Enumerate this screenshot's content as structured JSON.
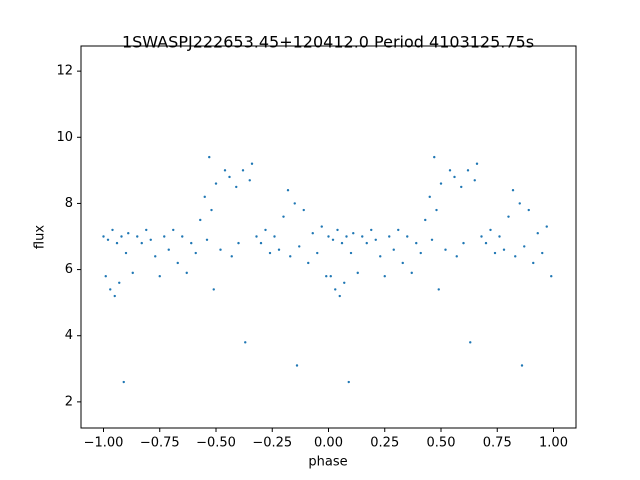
{
  "chart_data": {
    "type": "scatter",
    "title": "1SWASPJ222653.45+120412.0 Period 4103125.75s",
    "x_label": "phase",
    "y_label": "flux",
    "color": "#1f77b4",
    "x": [
      -1.0,
      -0.99,
      -0.98,
      -0.97,
      -0.96,
      -0.95,
      -0.94,
      -0.93,
      -0.92,
      -0.91,
      -0.9,
      -0.89,
      -0.87,
      -0.85,
      -0.83,
      -0.81,
      -0.79,
      -0.77,
      -0.75,
      -0.73,
      -0.71,
      -0.69,
      -0.67,
      -0.65,
      -0.63,
      -0.61,
      -0.59,
      -0.57,
      -0.55,
      -0.54,
      -0.53,
      -0.52,
      -0.51,
      -0.5,
      -0.48,
      -0.46,
      -0.44,
      -0.43,
      -0.41,
      -0.4,
      -0.38,
      -0.37,
      -0.35,
      -0.34,
      -0.32,
      -0.3,
      -0.28,
      -0.26,
      -0.24,
      -0.22,
      -0.2,
      -0.18,
      -0.17,
      -0.15,
      -0.14,
      -0.13,
      -0.11,
      -0.09,
      -0.07,
      -0.05,
      -0.03,
      -0.01,
      0.0,
      0.01,
      0.02,
      0.03,
      0.04,
      0.05,
      0.06,
      0.07,
      0.08,
      0.09,
      0.1,
      0.11,
      0.13,
      0.15,
      0.17,
      0.19,
      0.21,
      0.23,
      0.25,
      0.27,
      0.29,
      0.31,
      0.33,
      0.35,
      0.37,
      0.39,
      0.41,
      0.43,
      0.45,
      0.46,
      0.47,
      0.48,
      0.49,
      0.5,
      0.52,
      0.54,
      0.56,
      0.57,
      0.59,
      0.6,
      0.62,
      0.63,
      0.65,
      0.66,
      0.68,
      0.7,
      0.72,
      0.74,
      0.76,
      0.78,
      0.8,
      0.82,
      0.83,
      0.85,
      0.86,
      0.87,
      0.89,
      0.91,
      0.93,
      0.95,
      0.97,
      0.99
    ],
    "values": [
      7.0,
      5.8,
      6.9,
      5.4,
      7.2,
      5.2,
      6.8,
      5.6,
      7.0,
      2.6,
      6.5,
      7.1,
      5.9,
      7.0,
      6.8,
      7.2,
      6.9,
      6.4,
      5.8,
      7.0,
      6.6,
      7.2,
      6.2,
      7.0,
      5.9,
      6.8,
      6.5,
      7.5,
      8.2,
      6.9,
      9.4,
      7.8,
      5.4,
      8.6,
      6.6,
      9.0,
      8.8,
      6.4,
      8.5,
      6.8,
      9.0,
      3.8,
      8.7,
      9.2,
      7.0,
      6.8,
      7.2,
      6.5,
      7.0,
      6.6,
      7.6,
      8.4,
      6.4,
      8.0,
      3.1,
      6.7,
      7.8,
      6.2,
      7.1,
      6.5,
      7.3,
      5.8,
      7.0,
      5.8,
      6.9,
      5.4,
      7.2,
      5.2,
      6.8,
      5.6,
      7.0,
      2.6,
      6.5,
      7.1,
      5.9,
      7.0,
      6.8,
      7.2,
      6.9,
      6.4,
      5.8,
      7.0,
      6.6,
      7.2,
      6.2,
      7.0,
      5.9,
      6.8,
      6.5,
      7.5,
      8.2,
      6.9,
      9.4,
      7.8,
      5.4,
      8.6,
      6.6,
      9.0,
      8.8,
      6.4,
      8.5,
      6.8,
      9.0,
      3.8,
      8.7,
      9.2,
      7.0,
      6.8,
      7.2,
      6.5,
      7.0,
      6.6,
      7.6,
      8.4,
      6.4,
      8.0,
      3.1,
      6.7,
      7.8,
      6.2,
      7.1,
      6.5,
      7.3,
      5.8
    ],
    "xlim": [
      -1.1,
      1.1
    ],
    "ylim": [
      1.21,
      12.76
    ],
    "xticks": [
      {
        "value": -1,
        "label": "−1.00"
      },
      {
        "value": -0.75,
        "label": "−0.75"
      },
      {
        "value": -0.5,
        "label": "−0.50"
      },
      {
        "value": -0.25,
        "label": "−0.25"
      },
      {
        "value": 0,
        "label": "0.00"
      },
      {
        "value": 0.25,
        "label": "0.25"
      },
      {
        "value": 0.5,
        "label": "0.50"
      },
      {
        "value": 0.75,
        "label": "0.75"
      },
      {
        "value": 1,
        "label": "1.00"
      }
    ],
    "yticks": [
      2,
      4,
      6,
      8,
      10,
      12
    ]
  }
}
